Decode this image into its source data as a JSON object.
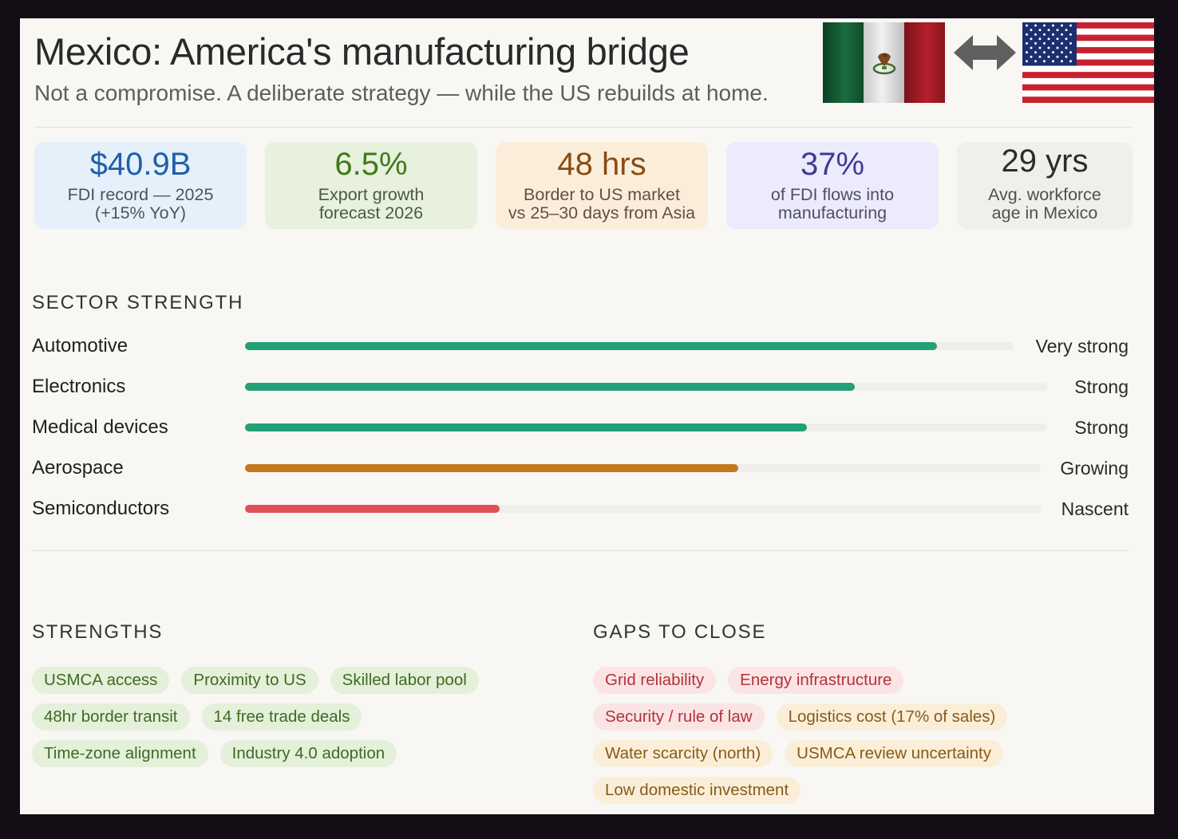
{
  "header": {
    "title": "Mexico: America's manufacturing bridge",
    "subtitle": "Not a compromise. A deliberate strategy — while the US rebuilds at home.",
    "icons": [
      "mexico-flag-icon",
      "bidirectional-arrow-icon",
      "us-flag-icon"
    ]
  },
  "stats": [
    {
      "value": "$40.9B",
      "label": "FDI record — 2025\n(+15% YoY)",
      "bg": "#e6f0fb",
      "value_color": "#1f5fa8",
      "label_color": "#4b5360"
    },
    {
      "value": "6.5%",
      "label": "Export growth\nforecast 2026",
      "bg": "#e7f1de",
      "value_color": "#3f7a1d",
      "label_color": "#4d5848"
    },
    {
      "value": "48 hrs",
      "label": "Border to US market\nvs 25–30 days from Asia",
      "bg": "#faeedb",
      "value_color": "#8a4b12",
      "label_color": "#5e5247"
    },
    {
      "value": "37%",
      "label": "of FDI flows into\nmanufacturing",
      "bg": "#ecebfb",
      "value_color": "#3e3a9a",
      "label_color": "#4f4e66"
    },
    {
      "value": "29 yrs",
      "label": "Avg. workforce\nage in Mexico",
      "bg": "#f0efea",
      "value_color": "#2c2c2c",
      "label_color": "#4f4f4f"
    }
  ],
  "sectors": {
    "heading": "SECTOR STRENGTH",
    "items": [
      {
        "name": "Automotive",
        "rating": "Very strong",
        "level": 0.9,
        "color": "#22a077"
      },
      {
        "name": "Electronics",
        "rating": "Strong",
        "level": 0.76,
        "color": "#22a077"
      },
      {
        "name": "Medical devices",
        "rating": "Strong",
        "level": 0.7,
        "color": "#22a077"
      },
      {
        "name": "Aerospace",
        "rating": "Growing",
        "level": 0.62,
        "color": "#c4771d"
      },
      {
        "name": "Semiconductors",
        "rating": "Nascent",
        "level": 0.32,
        "color": "#e14f56"
      }
    ]
  },
  "strengths": {
    "heading": "STRENGTHS",
    "rows": [
      [
        "USMCA access",
        "Proximity to US",
        "Skilled labor pool"
      ],
      [
        "48hr border transit",
        "14 free trade deals"
      ],
      [
        "Time-zone alignment",
        "Industry 4.0 adoption"
      ]
    ]
  },
  "gaps": {
    "heading": "GAPS TO CLOSE",
    "rows": [
      [
        {
          "text": "Grid reliability",
          "tone": "red"
        },
        {
          "text": "Energy infrastructure",
          "tone": "red"
        }
      ],
      [
        {
          "text": "Security / rule of law",
          "tone": "red"
        },
        {
          "text": "Logistics cost (17% of sales)",
          "tone": "amber"
        }
      ],
      [
        {
          "text": "Water scarcity (north)",
          "tone": "amber"
        },
        {
          "text": "USMCA review uncertainty",
          "tone": "amber"
        }
      ],
      [
        {
          "text": "Low domestic investment",
          "tone": "amber"
        }
      ]
    ]
  }
}
